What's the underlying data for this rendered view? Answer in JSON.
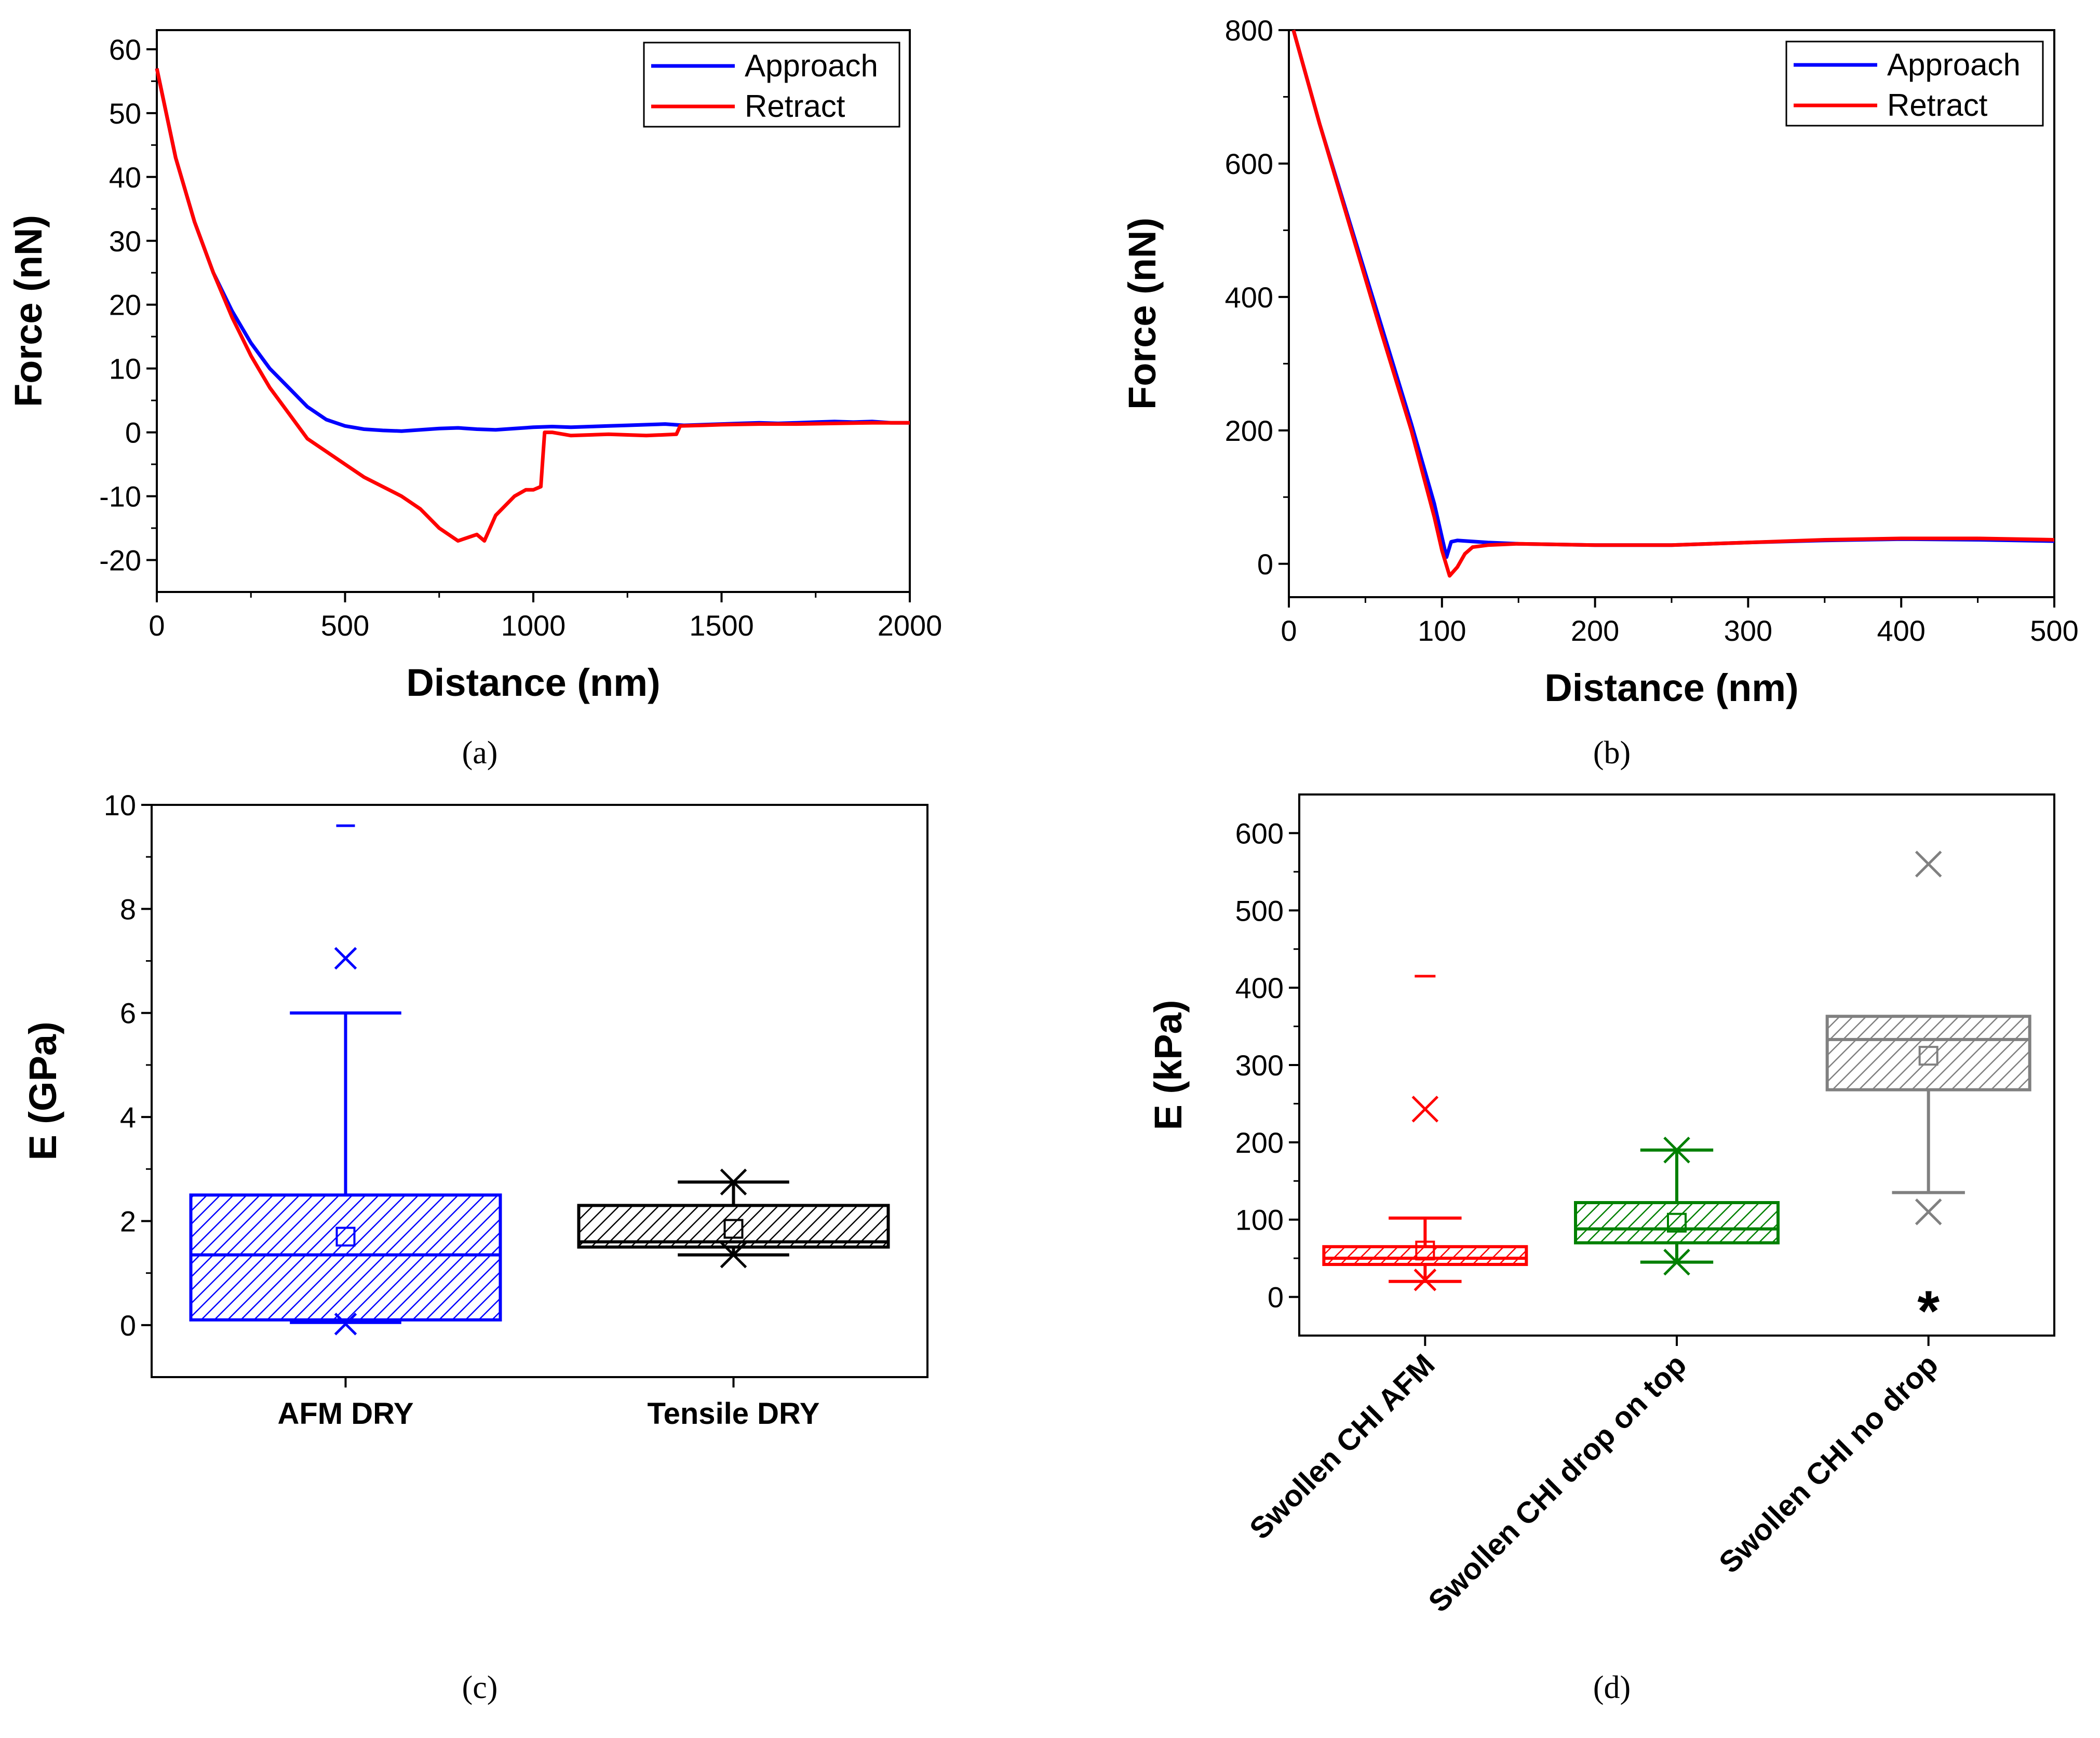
{
  "chart_data": [
    {
      "id": "a",
      "type": "line",
      "caption": "(a)",
      "xlabel": "Distance (nm)",
      "ylabel": "Force (nN)",
      "xlim": [
        0,
        2000
      ],
      "ylim": [
        -25,
        63
      ],
      "xticks": [
        0,
        500,
        1000,
        1500,
        2000
      ],
      "yticks": [
        -20,
        -10,
        0,
        10,
        20,
        30,
        40,
        50,
        60
      ],
      "legend": "top-right",
      "series": [
        {
          "name": "Approach",
          "color": "#0000ff",
          "x": [
            0,
            50,
            100,
            150,
            200,
            250,
            300,
            350,
            400,
            450,
            500,
            550,
            600,
            650,
            700,
            750,
            800,
            850,
            900,
            950,
            1000,
            1050,
            1100,
            1150,
            1200,
            1250,
            1300,
            1350,
            1400,
            1450,
            1500,
            1550,
            1600,
            1650,
            1700,
            1750,
            1800,
            1850,
            1900,
            1950,
            2000
          ],
          "y": [
            57,
            43,
            33,
            25,
            19,
            14,
            10,
            7,
            4,
            2,
            1,
            0.5,
            0.3,
            0.2,
            0.4,
            0.6,
            0.7,
            0.5,
            0.4,
            0.6,
            0.8,
            0.9,
            0.8,
            0.9,
            1.0,
            1.1,
            1.2,
            1.3,
            1.1,
            1.2,
            1.3,
            1.4,
            1.5,
            1.4,
            1.5,
            1.6,
            1.7,
            1.6,
            1.7,
            1.5,
            1.5
          ]
        },
        {
          "name": "Retract",
          "color": "#ff0000",
          "x": [
            0,
            50,
            100,
            150,
            200,
            250,
            300,
            350,
            400,
            450,
            500,
            550,
            600,
            650,
            700,
            750,
            800,
            850,
            870,
            900,
            950,
            980,
            1000,
            1020,
            1030,
            1050,
            1100,
            1200,
            1300,
            1380,
            1390,
            1450,
            1500,
            1600,
            1700,
            1800,
            1900,
            2000
          ],
          "y": [
            57,
            43,
            33,
            25,
            18,
            12,
            7,
            3,
            -1,
            -3,
            -5,
            -7,
            -8.5,
            -10,
            -12,
            -15,
            -17,
            -16,
            -17,
            -13,
            -10,
            -9,
            -9,
            -8.5,
            0,
            0,
            -0.5,
            -0.3,
            -0.5,
            -0.3,
            1,
            1.1,
            1.2,
            1.3,
            1.3,
            1.4,
            1.5,
            1.5
          ]
        }
      ]
    },
    {
      "id": "b",
      "type": "line",
      "caption": "(b)",
      "xlabel": "Distance (nm)",
      "ylabel": "Force (nN)",
      "xlim": [
        0,
        500
      ],
      "ylim": [
        -50,
        800
      ],
      "xticks": [
        0,
        100,
        200,
        300,
        400,
        500
      ],
      "yticks": [
        0,
        200,
        400,
        600,
        800
      ],
      "legend": "top-right",
      "series": [
        {
          "name": "Approach",
          "color": "#0000ff",
          "x": [
            3,
            20,
            40,
            60,
            80,
            95,
            100,
            103,
            106,
            110,
            130,
            150,
            200,
            250,
            300,
            350,
            400,
            450,
            500
          ],
          "y": [
            800,
            660,
            510,
            360,
            210,
            90,
            40,
            10,
            33,
            35,
            32,
            30,
            28,
            28,
            32,
            35,
            37,
            36,
            34
          ]
        },
        {
          "name": "Retract",
          "color": "#ff0000",
          "x": [
            3,
            20,
            40,
            60,
            80,
            95,
            100,
            105,
            110,
            115,
            120,
            130,
            150,
            200,
            250,
            300,
            350,
            400,
            450,
            500
          ],
          "y": [
            800,
            660,
            505,
            350,
            200,
            70,
            20,
            -18,
            -5,
            15,
            25,
            28,
            30,
            28,
            28,
            32,
            36,
            38,
            38,
            36
          ]
        }
      ]
    },
    {
      "id": "c",
      "type": "box",
      "caption": "(c)",
      "ylabel": "E (GPa)",
      "ylim": [
        -1,
        10
      ],
      "yticks": [
        0,
        2,
        4,
        6,
        8,
        10
      ],
      "categories": [
        "AFM DRY",
        "Tensile DRY"
      ],
      "boxes": [
        {
          "category": "AFM DRY",
          "color": "#0000ff",
          "fill": "#0000ff",
          "q1": 0.1,
          "median": 1.35,
          "q3": 2.5,
          "mean": 1.7,
          "whisker_low": 0.05,
          "whisker_high": 6.0,
          "min_marker": 0.02,
          "outlier_x": 7.05,
          "max_marker": 9.6
        },
        {
          "category": "Tensile DRY",
          "color": "#000000",
          "fill": "#000000",
          "q1": 1.5,
          "median": 1.6,
          "q3": 2.3,
          "mean": 1.85,
          "whisker_low": 1.35,
          "whisker_high": 2.75,
          "min_marker": 1.35,
          "max_marker": 2.75
        }
      ]
    },
    {
      "id": "d",
      "type": "box",
      "caption": "(d)",
      "ylabel": "E (kPa)",
      "ylim": [
        -50,
        650
      ],
      "yticks": [
        0,
        100,
        200,
        300,
        400,
        500,
        600
      ],
      "categories": [
        "Swollen CHI AFM",
        "Swollen CHI drop on top",
        "Swollen CHI no drop"
      ],
      "annotation": "*",
      "boxes": [
        {
          "category": "Swollen CHI AFM",
          "color": "#ff0000",
          "fill": "#ff0000",
          "q1": 42,
          "median": 50,
          "q3": 65,
          "mean": 60,
          "whisker_low": 20,
          "whisker_high": 102,
          "min_marker": 22,
          "outlier_x": 243,
          "max_marker": 415
        },
        {
          "category": "Swollen CHI drop on top",
          "color": "#008000",
          "fill": "#008000",
          "q1": 70,
          "median": 88,
          "q3": 122,
          "mean": 96,
          "whisker_low": 45,
          "whisker_high": 190,
          "min_marker": 45,
          "max_marker": 190
        },
        {
          "category": "Swollen CHI no drop",
          "color": "#808080",
          "fill": "#808080",
          "q1": 268,
          "median": 333,
          "q3": 363,
          "mean": 312,
          "whisker_low": 135,
          "whisker_high": 363,
          "min_marker": 110,
          "max_marker": 560
        }
      ]
    }
  ]
}
